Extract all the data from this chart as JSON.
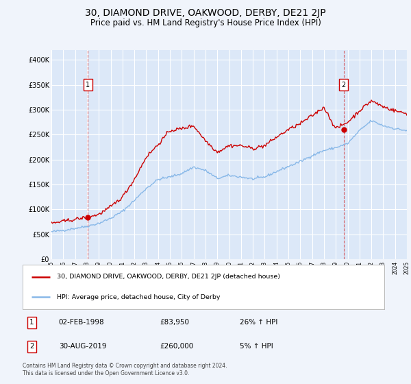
{
  "title": "30, DIAMOND DRIVE, OAKWOOD, DERBY, DE21 2JP",
  "subtitle": "Price paid vs. HM Land Registry's House Price Index (HPI)",
  "title_fontsize": 10,
  "subtitle_fontsize": 8.5,
  "bg_color": "#f0f4fb",
  "plot_bg_color": "#dce8f8",
  "grid_color": "#ffffff",
  "hpi_line_color": "#88b8e8",
  "price_line_color": "#cc0000",
  "ylim": [
    0,
    420000
  ],
  "yticks": [
    0,
    50000,
    100000,
    150000,
    200000,
    250000,
    300000,
    350000,
    400000
  ],
  "ytick_labels": [
    "£0",
    "£50K",
    "£100K",
    "£150K",
    "£200K",
    "£250K",
    "£300K",
    "£350K",
    "£400K"
  ],
  "xstart_year": 1995,
  "xend_year": 2025,
  "sale1_year": 1998.09,
  "sale1_price": 83950,
  "sale1_label": "1",
  "sale1_date": "02-FEB-1998",
  "sale1_hpi_pct": "26% ↑ HPI",
  "sale2_year": 2019.66,
  "sale2_price": 260000,
  "sale2_label": "2",
  "sale2_date": "30-AUG-2019",
  "sale2_hpi_pct": "5% ↑ HPI",
  "legend_line1": "30, DIAMOND DRIVE, OAKWOOD, DERBY, DE21 2JP (detached house)",
  "legend_line2": "HPI: Average price, detached house, City of Derby",
  "footer": "Contains HM Land Registry data © Crown copyright and database right 2024.\nThis data is licensed under the Open Government Licence v3.0.",
  "hpi_pts_x": [
    1995,
    1996,
    1997,
    1998,
    1999,
    2000,
    2001,
    2002,
    2003,
    2004,
    2005,
    2006,
    2007,
    2008,
    2009,
    2010,
    2011,
    2012,
    2013,
    2014,
    2015,
    2016,
    2017,
    2018,
    2019,
    2020,
    2021,
    2022,
    2023,
    2024,
    2025
  ],
  "hpi_pts_y": [
    55000,
    58000,
    62000,
    66000,
    72000,
    82000,
    96000,
    118000,
    142000,
    160000,
    165000,
    172000,
    185000,
    178000,
    162000,
    168000,
    165000,
    161000,
    165000,
    176000,
    186000,
    196000,
    208000,
    218000,
    224000,
    232000,
    258000,
    278000,
    268000,
    262000,
    258000
  ],
  "price_pts_x": [
    1995,
    1996,
    1997,
    1998,
    1999,
    2000,
    2001,
    2002,
    2003,
    2004,
    2005,
    2006,
    2007,
    2008,
    2009,
    2010,
    2011,
    2012,
    2013,
    2014,
    2015,
    2016,
    2017,
    2018,
    2019,
    2020,
    2021,
    2022,
    2023,
    2024,
    2025
  ],
  "price_pts_y": [
    72000,
    76000,
    80000,
    84000,
    90000,
    105000,
    125000,
    160000,
    205000,
    230000,
    258000,
    262000,
    268000,
    238000,
    215000,
    228000,
    228000,
    222000,
    228000,
    245000,
    260000,
    272000,
    288000,
    305000,
    262000,
    275000,
    298000,
    318000,
    306000,
    298000,
    292000
  ]
}
